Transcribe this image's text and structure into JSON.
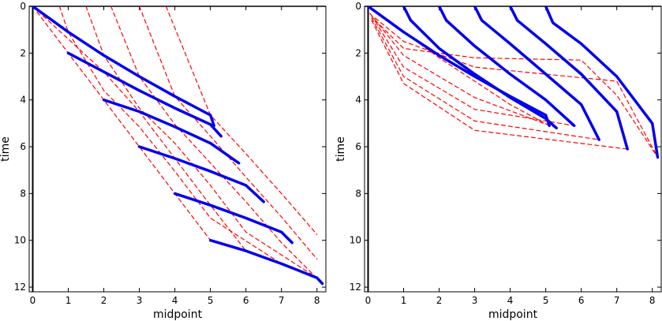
{
  "chart_data": [
    {
      "type": "line",
      "panel": "left",
      "title": "",
      "xlabel": "midpoint",
      "ylabel": "time",
      "xlim": [
        -0.1,
        8.25
      ],
      "ylim": [
        12.2,
        0
      ],
      "y_axis_inverted": true,
      "xticks": [
        0,
        1,
        2,
        3,
        4,
        5,
        6,
        7,
        8
      ],
      "yticks": [
        0,
        2,
        4,
        6,
        8,
        10,
        12
      ],
      "colors": {
        "solid": "#0000ee",
        "dashed": "#ff0000"
      },
      "series": [
        {
          "name": "blue-0",
          "style": "solid",
          "points": [
            [
              0,
              0
            ],
            [
              1,
              1.1
            ],
            [
              2,
              2.1
            ],
            [
              3,
              3.0
            ],
            [
              4,
              3.85
            ],
            [
              5,
              4.65
            ],
            [
              5.1,
              5.1
            ]
          ]
        },
        {
          "name": "blue-1",
          "style": "solid",
          "points": [
            [
              1,
              2
            ],
            [
              2,
              2.8
            ],
            [
              3,
              3.6
            ],
            [
              4,
              4.35
            ],
            [
              5,
              5.05
            ],
            [
              5.3,
              5.55
            ]
          ]
        },
        {
          "name": "blue-2",
          "style": "solid",
          "points": [
            [
              2,
              4
            ],
            [
              3,
              4.5
            ],
            [
              4,
              5.15
            ],
            [
              5,
              5.85
            ],
            [
              5.8,
              6.7
            ]
          ]
        },
        {
          "name": "blue-3",
          "style": "solid",
          "points": [
            [
              3,
              6
            ],
            [
              4,
              6.5
            ],
            [
              5,
              7.05
            ],
            [
              6,
              7.65
            ],
            [
              6.5,
              8.35
            ]
          ]
        },
        {
          "name": "blue-4",
          "style": "solid",
          "points": [
            [
              4,
              8
            ],
            [
              5,
              8.5
            ],
            [
              6,
              9.05
            ],
            [
              7,
              9.65
            ],
            [
              7.3,
              10.1
            ]
          ]
        },
        {
          "name": "blue-5",
          "style": "solid",
          "points": [
            [
              5,
              10
            ],
            [
              6,
              10.45
            ],
            [
              7,
              11.0
            ],
            [
              8,
              11.6
            ],
            [
              8.15,
              11.85
            ]
          ]
        },
        {
          "name": "red-0",
          "style": "dashed",
          "points": [
            [
              0,
              0
            ],
            [
              1,
              2
            ],
            [
              2,
              4
            ],
            [
              3,
              6
            ],
            [
              4,
              8
            ],
            [
              5,
              10
            ]
          ]
        },
        {
          "name": "red-1",
          "style": "dashed",
          "points": [
            [
              0,
              0
            ],
            [
              2,
              2.8
            ],
            [
              3,
              4.5
            ],
            [
              4,
              6.5
            ],
            [
              5,
              8.5
            ],
            [
              6,
              10.45
            ]
          ]
        },
        {
          "name": "red-2",
          "style": "dashed",
          "points": [
            [
              0.75,
              0
            ],
            [
              1,
              1.1
            ],
            [
              2,
              3.6
            ],
            [
              3,
              5.15
            ],
            [
              4,
              7.05
            ],
            [
              5,
              9.05
            ],
            [
              7,
              11.0
            ]
          ]
        },
        {
          "name": "red-3",
          "style": "dashed",
          "points": [
            [
              1.5,
              0
            ],
            [
              2,
              2.1
            ],
            [
              3,
              4.35
            ],
            [
              4,
              5.85
            ],
            [
              5,
              7.65
            ],
            [
              6,
              9.65
            ],
            [
              8,
              11.6
            ]
          ]
        },
        {
          "name": "red-4",
          "style": "dashed",
          "points": [
            [
              2.2,
              0
            ],
            [
              3,
              3.0
            ],
            [
              4,
              5.05
            ],
            [
              5,
              6.7
            ],
            [
              6,
              8.35
            ],
            [
              7,
              10.1
            ],
            [
              8.15,
              11.85
            ]
          ]
        },
        {
          "name": "red-5",
          "style": "dashed",
          "points": [
            [
              3.0,
              0
            ],
            [
              4,
              3.85
            ],
            [
              5,
              5.55
            ],
            [
              6,
              7.3
            ],
            [
              7,
              9.0
            ],
            [
              8,
              10.8
            ]
          ]
        },
        {
          "name": "red-6",
          "style": "dashed",
          "points": [
            [
              3.75,
              0
            ],
            [
              5,
              4.65
            ],
            [
              6,
              6.3
            ],
            [
              7,
              8.0
            ],
            [
              8,
              9.75
            ]
          ]
        }
      ]
    },
    {
      "type": "line",
      "panel": "right",
      "title": "",
      "xlabel": "midpoint",
      "ylabel": "time",
      "xlim": [
        -0.1,
        8.25
      ],
      "ylim": [
        12.2,
        0
      ],
      "y_axis_inverted": true,
      "xticks": [
        0,
        1,
        2,
        3,
        4,
        5,
        6,
        7,
        8
      ],
      "yticks": [
        0,
        2,
        4,
        6,
        8,
        10,
        12
      ],
      "colors": {
        "solid": "#0000ee",
        "dashed": "#ff0000"
      },
      "series": [
        {
          "name": "blue-0",
          "style": "solid",
          "points": [
            [
              0,
              0
            ],
            [
              1,
              1.1
            ],
            [
              2,
              2.1
            ],
            [
              3,
              3.0
            ],
            [
              4,
              3.85
            ],
            [
              5,
              4.65
            ],
            [
              5.1,
              5.1
            ]
          ]
        },
        {
          "name": "blue-1",
          "style": "solid",
          "points": [
            [
              1,
              0
            ],
            [
              1.2,
              0.6
            ],
            [
              2,
              1.8
            ],
            [
              3,
              2.9
            ],
            [
              4,
              3.9
            ],
            [
              5,
              4.8
            ],
            [
              5.3,
              5.2
            ]
          ]
        },
        {
          "name": "blue-2",
          "style": "solid",
          "points": [
            [
              2,
              0
            ],
            [
              2.2,
              0.6
            ],
            [
              3,
              1.7
            ],
            [
              4,
              2.9
            ],
            [
              5,
              4.0
            ],
            [
              5.8,
              5.1
            ]
          ]
        },
        {
          "name": "blue-3",
          "style": "solid",
          "points": [
            [
              3,
              0
            ],
            [
              3.2,
              0.6
            ],
            [
              4,
              1.6
            ],
            [
              5,
              2.9
            ],
            [
              6,
              4.2
            ],
            [
              6.5,
              5.7
            ]
          ]
        },
        {
          "name": "blue-4",
          "style": "solid",
          "points": [
            [
              4,
              0
            ],
            [
              4.2,
              0.6
            ],
            [
              5,
              1.6
            ],
            [
              6,
              2.9
            ],
            [
              7,
              4.5
            ],
            [
              7.3,
              6.1
            ]
          ]
        },
        {
          "name": "blue-5",
          "style": "solid",
          "points": [
            [
              5,
              0
            ],
            [
              5.2,
              0.7
            ],
            [
              6,
              1.6
            ],
            [
              7,
              3.0
            ],
            [
              8,
              5.0
            ],
            [
              8.15,
              6.45
            ]
          ]
        },
        {
          "name": "red-0",
          "style": "dashed",
          "points": [
            [
              0,
              0
            ],
            [
              2,
              2.2
            ],
            [
              4,
              4.2
            ],
            [
              5.1,
              5.1
            ]
          ]
        },
        {
          "name": "red-1",
          "style": "dashed",
          "points": [
            [
              0.05,
              0.3
            ],
            [
              1,
              2.1
            ],
            [
              3,
              3.9
            ],
            [
              5.3,
              5.2
            ]
          ]
        },
        {
          "name": "red-2",
          "style": "dashed",
          "points": [
            [
              0.1,
              0.4
            ],
            [
              1,
              2.6
            ],
            [
              3,
              4.4
            ],
            [
              5.8,
              5.1
            ]
          ]
        },
        {
          "name": "red-3",
          "style": "dashed",
          "points": [
            [
              0.1,
              0.5
            ],
            [
              1,
              3.0
            ],
            [
              3,
              4.9
            ],
            [
              6.5,
              5.7
            ]
          ]
        },
        {
          "name": "red-4",
          "style": "dashed",
          "points": [
            [
              0.1,
              0.6
            ],
            [
              1,
              3.3
            ],
            [
              3,
              5.3
            ],
            [
              7.3,
              6.1
            ]
          ]
        },
        {
          "name": "red-5",
          "style": "dashed",
          "points": [
            [
              0.2,
              0.6
            ],
            [
              1,
              1.8
            ],
            [
              3,
              2.2
            ],
            [
              6,
              2.3
            ],
            [
              7,
              3.8
            ],
            [
              8.15,
              6.45
            ]
          ]
        },
        {
          "name": "red-6",
          "style": "dashed",
          "points": [
            [
              0.2,
              0.5
            ],
            [
              1,
              1.5
            ],
            [
              3,
              2.6
            ],
            [
              7,
              3.2
            ],
            [
              8.15,
              6.45
            ]
          ]
        }
      ]
    }
  ]
}
